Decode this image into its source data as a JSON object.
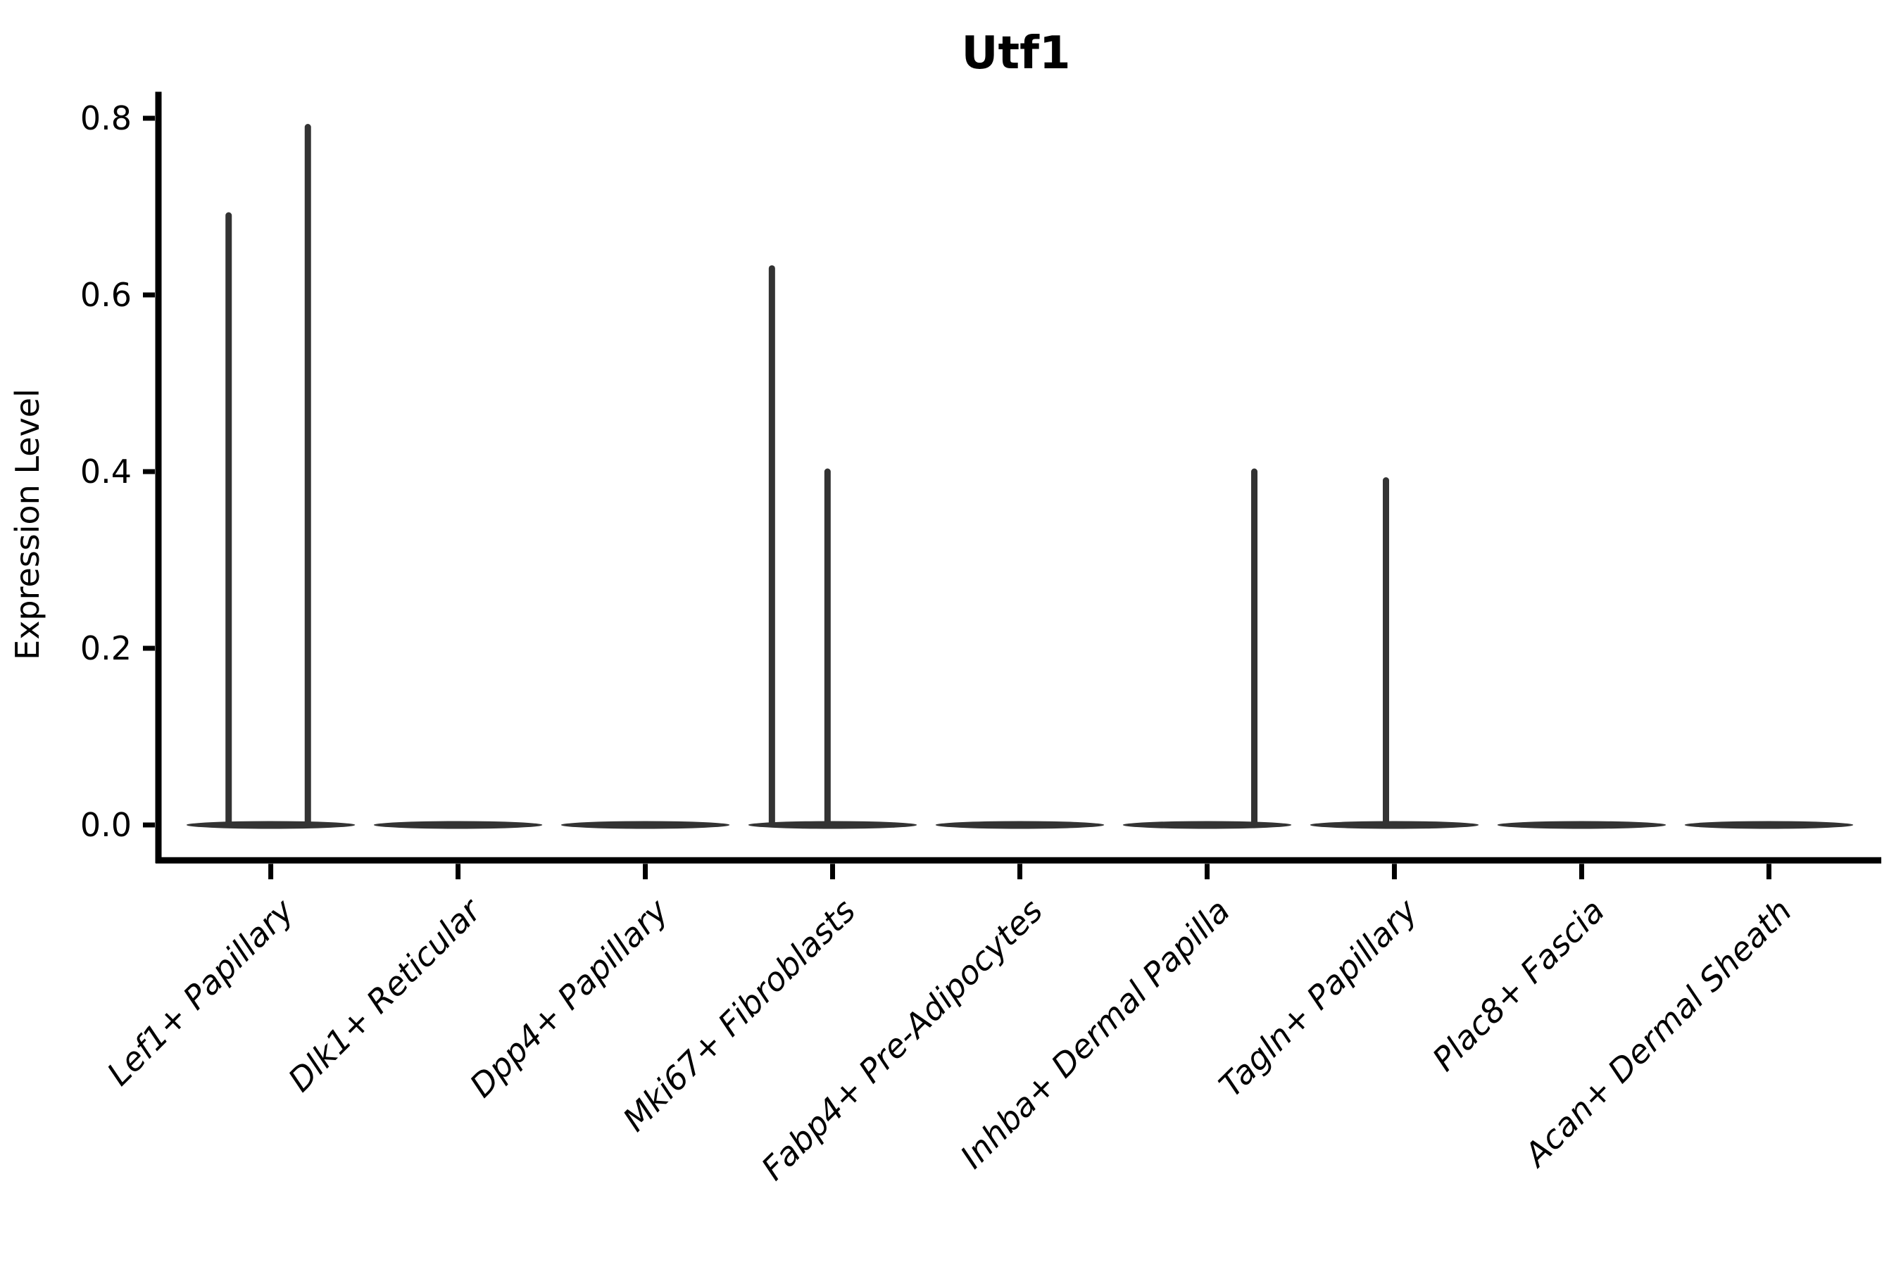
{
  "chart_data": {
    "type": "violin",
    "title": "Utf1",
    "ylabel": "Expression Level",
    "xlabel": "",
    "grid": false,
    "legend": false,
    "background": "#ffffff",
    "axis_color": "#000000",
    "violin_color": "#333333",
    "ytick_labels": [
      "0.0",
      "0.2",
      "0.4",
      "0.6",
      "0.8"
    ],
    "ytick_values": [
      0,
      0.2,
      0.4,
      0.6,
      0.8
    ],
    "ylim": [
      -0.04,
      0.83
    ],
    "categories": [
      "Lef1+ Papillary",
      "Dlk1+ Reticular",
      "Dpp4+ Papillary",
      "Mki67+ Fibroblasts",
      "Fabp4+ Pre-Adipocytes",
      "Inhba+ Dermal Papilla",
      "Tagln+ Papillary",
      "Plac8+ Fascia",
      "Acan+ Dermal Sheath"
    ],
    "violins": [
      {
        "category": "Lef1+ Papillary",
        "baseline_value": 0,
        "max_expression": 0.79,
        "spikes": [
          {
            "pos": -0.25,
            "value": 0.69
          },
          {
            "pos": 0.22,
            "value": 0.79
          }
        ]
      },
      {
        "category": "Dlk1+ Reticular",
        "baseline_value": 0,
        "max_expression": 0,
        "spikes": []
      },
      {
        "category": "Dpp4+ Papillary",
        "baseline_value": 0,
        "max_expression": 0,
        "spikes": []
      },
      {
        "category": "Mki67+ Fibroblasts",
        "baseline_value": 0,
        "max_expression": 0.63,
        "spikes": [
          {
            "pos": -0.36,
            "value": 0.63
          },
          {
            "pos": -0.03,
            "value": 0.4
          }
        ]
      },
      {
        "category": "Fabp4+ Pre-Adipocytes",
        "baseline_value": 0,
        "max_expression": 0,
        "spikes": []
      },
      {
        "category": "Inhba+ Dermal Papilla",
        "baseline_value": 0,
        "max_expression": 0.4,
        "spikes": [
          {
            "pos": 0.28,
            "value": 0.4
          }
        ]
      },
      {
        "category": "Tagln+ Papillary",
        "baseline_value": 0,
        "max_expression": 0.39,
        "spikes": [
          {
            "pos": -0.05,
            "value": 0.39
          }
        ]
      },
      {
        "category": "Plac8+ Fascia",
        "baseline_value": 0,
        "max_expression": 0,
        "spikes": []
      },
      {
        "category": "Acan+ Dermal Sheath",
        "baseline_value": 0,
        "max_expression": 0,
        "spikes": []
      }
    ]
  }
}
